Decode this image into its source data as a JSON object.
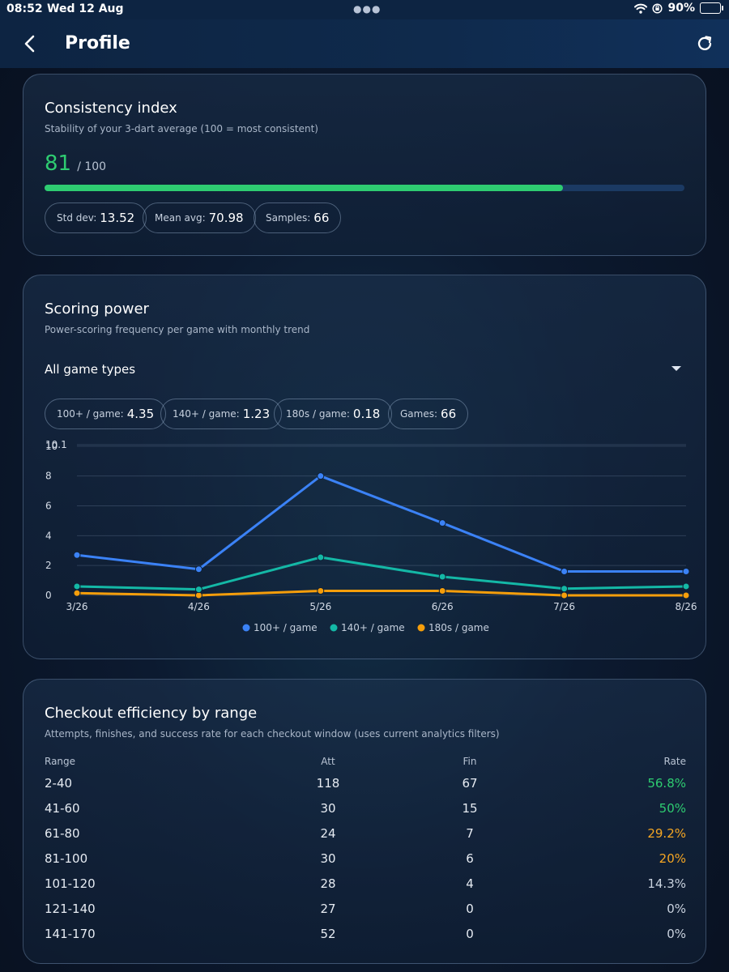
{
  "status_bar": {
    "time": "08:52",
    "date": "Wed 12 Aug",
    "battery": "90%"
  },
  "header": {
    "title": "Profile"
  },
  "consistency": {
    "title": "Consistency index",
    "subtitle": "Stability of your 3-dart average (100 = most consistent)",
    "score": "81",
    "score_max": "/ 100",
    "progress_value": 0.81,
    "chips": [
      {
        "label": "Std dev:",
        "value": "13.52"
      },
      {
        "label": "Mean avg:",
        "value": "70.98"
      },
      {
        "label": "Samples:",
        "value": "66"
      }
    ]
  },
  "scoring": {
    "title": "Scoring power",
    "subtitle": "Power-scoring frequency per game with monthly trend",
    "filter": "All game types",
    "chips": [
      {
        "label": "100+ / game:",
        "value": "4.35"
      },
      {
        "label": "140+ / game:",
        "value": "1.23"
      },
      {
        "label": "180s / game:",
        "value": "0.18"
      },
      {
        "label": "Games:",
        "value": "66"
      }
    ]
  },
  "chart_data": {
    "type": "line",
    "title": "",
    "xlabel": "",
    "ylabel": "",
    "x": [
      "3/26",
      "4/26",
      "5/26",
      "6/26",
      "7/26",
      "8/26"
    ],
    "y_ticks": [
      "0",
      "2",
      "4",
      "6",
      "8",
      "10",
      "10.1"
    ],
    "ylim": [
      0,
      10.1
    ],
    "grid": true,
    "legend": "bottom",
    "series": [
      {
        "name": "100+ / game",
        "color": "#3b82f6",
        "values": [
          2.7,
          1.75,
          8.0,
          4.85,
          1.6,
          1.6
        ]
      },
      {
        "name": "140+ / game",
        "color": "#14b8a6",
        "values": [
          0.6,
          0.4,
          2.55,
          1.25,
          0.45,
          0.6
        ]
      },
      {
        "name": "180s / game",
        "color": "#f59e0b",
        "values": [
          0.15,
          0.0,
          0.3,
          0.3,
          0.0,
          0.0
        ]
      }
    ]
  },
  "checkout": {
    "title": "Checkout efficiency by range",
    "subtitle": "Attempts, finishes, and success rate for each checkout window (uses current analytics filters)",
    "headers": [
      "Range",
      "Att",
      "Fin",
      "Rate"
    ],
    "rows": [
      {
        "range": "2-40",
        "att": "118",
        "fin": "67",
        "rate": "56.8%",
        "color": "#2ecc71"
      },
      {
        "range": "41-60",
        "att": "30",
        "fin": "15",
        "rate": "50%",
        "color": "#2ecc71"
      },
      {
        "range": "61-80",
        "att": "24",
        "fin": "7",
        "rate": "29.2%",
        "color": "#f5a623"
      },
      {
        "range": "81-100",
        "att": "30",
        "fin": "6",
        "rate": "20%",
        "color": "#f5a623"
      },
      {
        "range": "101-120",
        "att": "28",
        "fin": "4",
        "rate": "14.3%",
        "color": "#c9d2de"
      },
      {
        "range": "121-140",
        "att": "27",
        "fin": "0",
        "rate": "0%",
        "color": "#c9d2de"
      },
      {
        "range": "141-170",
        "att": "52",
        "fin": "0",
        "rate": "0%",
        "color": "#c9d2de"
      }
    ]
  }
}
